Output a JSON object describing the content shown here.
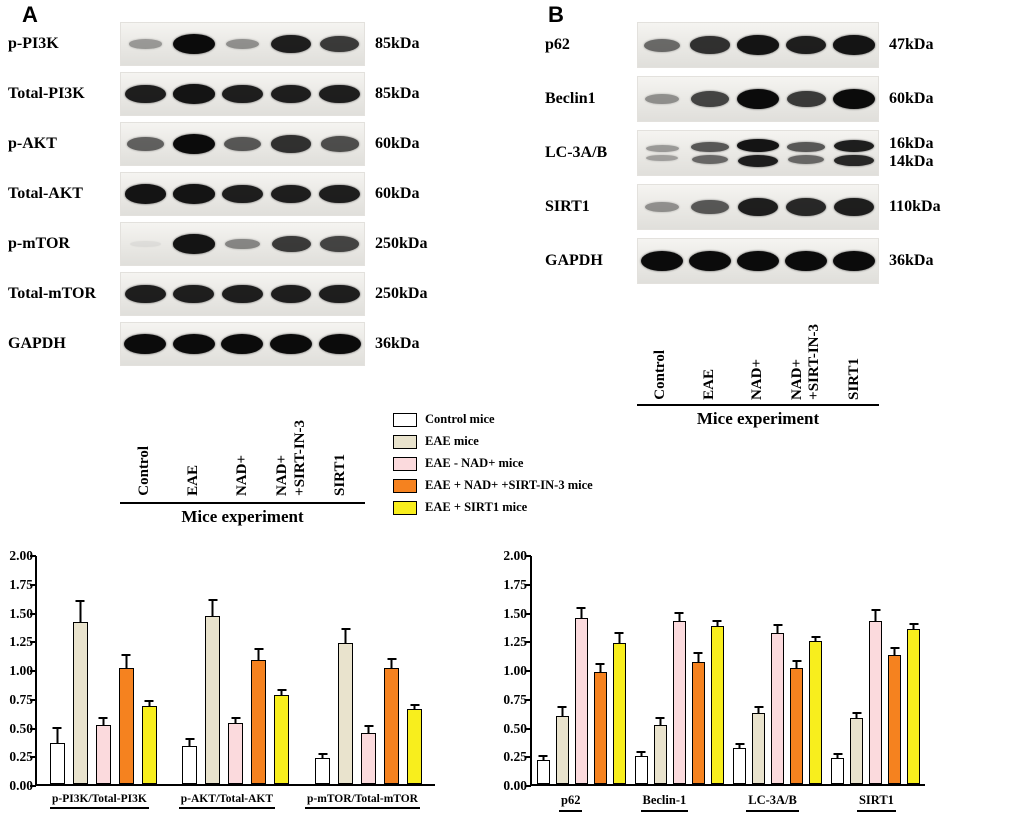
{
  "figure": {
    "panelA": {
      "label": "A",
      "axis_label": "Mice experiment",
      "lanes": [
        [
          "Control"
        ],
        [
          "EAE"
        ],
        [
          "NAD+"
        ],
        [
          "NAD+",
          "+SIRT-IN-3"
        ],
        [
          "SIRT1"
        ]
      ],
      "rows": [
        {
          "protein": "p-PI3K",
          "kda": "85kDa",
          "bands": [
            0.25,
            1.0,
            0.3,
            0.9,
            0.75
          ]
        },
        {
          "protein": "Total-PI3K",
          "kda": "85kDa",
          "bands": [
            0.9,
            0.95,
            0.9,
            0.9,
            0.9
          ]
        },
        {
          "protein": "p-AKT",
          "kda": "60kDa",
          "bands": [
            0.55,
            1.0,
            0.6,
            0.8,
            0.65
          ]
        },
        {
          "protein": "Total-AKT",
          "kda": "60kDa",
          "bands": [
            0.95,
            0.95,
            0.9,
            0.9,
            0.9
          ]
        },
        {
          "protein": "p-mTOR",
          "kda": "250kDa",
          "bands": [
            0.05,
            0.95,
            0.35,
            0.75,
            0.7
          ]
        },
        {
          "protein": "Total-mTOR",
          "kda": "250kDa",
          "bands": [
            0.9,
            0.9,
            0.9,
            0.9,
            0.9
          ]
        },
        {
          "protein": "GAPDH",
          "kda": "36kDa",
          "bands": [
            1,
            1,
            1,
            1,
            1
          ]
        }
      ]
    },
    "panelB": {
      "label": "B",
      "axis_label": "Mice experiment",
      "lanes": [
        [
          "Control"
        ],
        [
          "EAE"
        ],
        [
          "NAD+"
        ],
        [
          "NAD+",
          "+SIRT-IN-3"
        ],
        [
          "SIRT1"
        ]
      ],
      "rows": [
        {
          "protein": "p62",
          "kda": "47kDa",
          "bands": [
            0.5,
            0.8,
            0.95,
            0.9,
            0.95
          ]
        },
        {
          "protein": "Beclin1",
          "kda": "60kDa",
          "bands": [
            0.3,
            0.7,
            1.0,
            0.75,
            1.0
          ]
        },
        {
          "protein": "LC-3A/B",
          "kda": "16kDa\n14kDa",
          "bands": [
            0.25,
            0.6,
            0.95,
            0.6,
            0.9
          ],
          "bands2": [
            0.2,
            0.5,
            0.9,
            0.5,
            0.85
          ]
        },
        {
          "protein": "SIRT1",
          "kda": "110kDa",
          "bands": [
            0.3,
            0.6,
            0.9,
            0.85,
            0.9
          ]
        },
        {
          "protein": "GAPDH",
          "kda": "36kDa",
          "bands": [
            1,
            1,
            1,
            1,
            1
          ]
        }
      ]
    },
    "legend": [
      {
        "label": "Control mice",
        "color": "#ffffff"
      },
      {
        "label": "EAE mice",
        "color": "#e9e3cd"
      },
      {
        "label": "EAE - NAD+ mice",
        "color": "#fbdadd"
      },
      {
        "label": "EAE + NAD+ +SIRT-IN-3 mice",
        "color": "#f5821f"
      },
      {
        "label": "EAE + SIRT1 mice",
        "color": "#f8ee1d"
      }
    ]
  },
  "chart_data": [
    {
      "type": "bar",
      "categories": [
        "p-PI3K/Total-PI3K",
        "p-AKT/Total-AKT",
        "p-mTOR/Total-mTOR"
      ],
      "series": [
        {
          "name": "Control mice",
          "color": "#ffffff",
          "values": [
            0.36,
            0.33,
            0.23
          ],
          "errors": [
            0.14,
            0.07,
            0.04
          ]
        },
        {
          "name": "EAE mice",
          "color": "#e9e3cd",
          "values": [
            1.41,
            1.46,
            1.23
          ],
          "errors": [
            0.19,
            0.15,
            0.13
          ]
        },
        {
          "name": "EAE - NAD+ mice",
          "color": "#fbdadd",
          "values": [
            0.51,
            0.53,
            0.44
          ],
          "errors": [
            0.07,
            0.05,
            0.07
          ]
        },
        {
          "name": "EAE + NAD+ +SIRT-IN-3 mice",
          "color": "#f5821f",
          "values": [
            1.01,
            1.08,
            1.01
          ],
          "errors": [
            0.12,
            0.1,
            0.09
          ]
        },
        {
          "name": "EAE + SIRT1 mice",
          "color": "#f8ee1d",
          "values": [
            0.68,
            0.77,
            0.65
          ],
          "errors": [
            0.05,
            0.06,
            0.05
          ]
        }
      ],
      "ylim": [
        0,
        2.0
      ],
      "yticks": [
        "2.00",
        "1.75",
        "1.50",
        "1.25",
        "1.00",
        "0.75",
        "0.50",
        "0.25",
        "0.00"
      ],
      "grid": false,
      "legend_position": "figure-center"
    },
    {
      "type": "bar",
      "categories": [
        "p62",
        "Beclin-1",
        "LC-3A/B",
        "SIRT1"
      ],
      "series": [
        {
          "name": "Control mice",
          "color": "#ffffff",
          "values": [
            0.21,
            0.24,
            0.31,
            0.23
          ],
          "errors": [
            0.04,
            0.05,
            0.05,
            0.04
          ]
        },
        {
          "name": "EAE mice",
          "color": "#e9e3cd",
          "values": [
            0.59,
            0.51,
            0.62,
            0.57
          ],
          "errors": [
            0.09,
            0.07,
            0.06,
            0.06
          ]
        },
        {
          "name": "EAE - NAD+ mice",
          "color": "#fbdadd",
          "values": [
            1.44,
            1.42,
            1.31,
            1.42
          ],
          "errors": [
            0.1,
            0.08,
            0.08,
            0.1
          ]
        },
        {
          "name": "EAE + NAD+ +SIRT-IN-3 mice",
          "color": "#f5821f",
          "values": [
            0.97,
            1.06,
            1.01,
            1.12
          ],
          "errors": [
            0.08,
            0.09,
            0.07,
            0.07
          ]
        },
        {
          "name": "EAE + SIRT1 mice",
          "color": "#f8ee1d",
          "values": [
            1.23,
            1.37,
            1.24,
            1.35
          ],
          "errors": [
            0.09,
            0.06,
            0.05,
            0.05
          ]
        }
      ],
      "ylim": [
        0,
        2.0
      ],
      "yticks": [
        "2.00",
        "1.75",
        "1.50",
        "1.25",
        "1.00",
        "0.75",
        "0.50",
        "0.25",
        "0.00"
      ],
      "grid": false,
      "legend_position": "figure-center"
    }
  ]
}
